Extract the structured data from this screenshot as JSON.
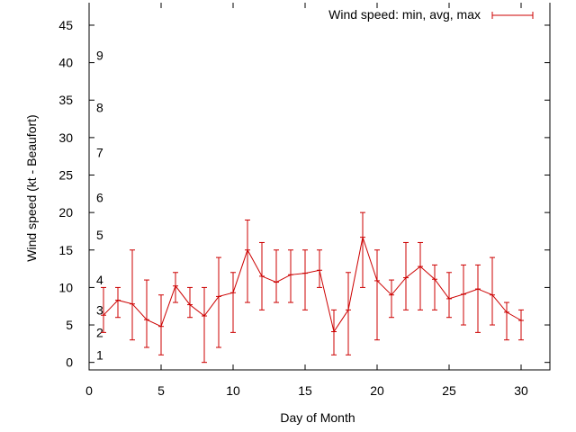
{
  "chart_data": {
    "type": "line",
    "title": "",
    "xlabel": "Day of Month",
    "ylabel": "Wind speed (kt - Beaufort)",
    "xlim": [
      0,
      32
    ],
    "ylim": [
      -1,
      48
    ],
    "xticks": [
      0,
      5,
      10,
      15,
      20,
      25,
      30
    ],
    "yticks": [
      0,
      5,
      10,
      15,
      20,
      25,
      30,
      35,
      40,
      45
    ],
    "grid": false,
    "legend_position": "top-right",
    "beaufort_labels": [
      {
        "label": "1",
        "value": 1
      },
      {
        "label": "2",
        "value": 4
      },
      {
        "label": "3",
        "value": 7
      },
      {
        "label": "4",
        "value": 11
      },
      {
        "label": "5",
        "value": 17
      },
      {
        "label": "6",
        "value": 22
      },
      {
        "label": "7",
        "value": 28
      },
      {
        "label": "8",
        "value": 34
      },
      {
        "label": "9",
        "value": 41
      }
    ],
    "series": [
      {
        "name": "Wind speed: min, avg, max",
        "color": "#cc0000",
        "x": [
          1,
          2,
          3,
          4,
          5,
          6,
          7,
          8,
          9,
          10,
          11,
          12,
          13,
          14,
          15,
          16,
          17,
          18,
          19,
          20,
          21,
          22,
          23,
          24,
          25,
          26,
          27,
          28,
          29,
          30
        ],
        "avg": [
          6.3,
          8.3,
          7.8,
          5.7,
          4.8,
          10.2,
          7.7,
          6.2,
          8.8,
          9.3,
          15,
          11.5,
          10.7,
          11.7,
          11.9,
          12.3,
          4.1,
          7.0,
          16.7,
          10.9,
          9.0,
          11.3,
          12.8,
          11.1,
          8.5,
          9.1,
          9.8,
          9.0,
          6.7,
          5.6
        ],
        "min": [
          4,
          6,
          3,
          2,
          1,
          8,
          6,
          0,
          2,
          4,
          8,
          7,
          8,
          8,
          7,
          10,
          1,
          1,
          10,
          3,
          6,
          7,
          7,
          7,
          6,
          5,
          4,
          5,
          3,
          3
        ],
        "max": [
          10,
          10,
          15,
          11,
          9,
          12,
          10,
          10,
          14,
          12,
          19,
          16,
          15,
          15,
          15,
          15,
          7,
          12,
          20,
          15,
          11,
          16,
          16,
          13,
          12,
          13,
          13,
          14,
          8,
          7
        ]
      }
    ]
  }
}
